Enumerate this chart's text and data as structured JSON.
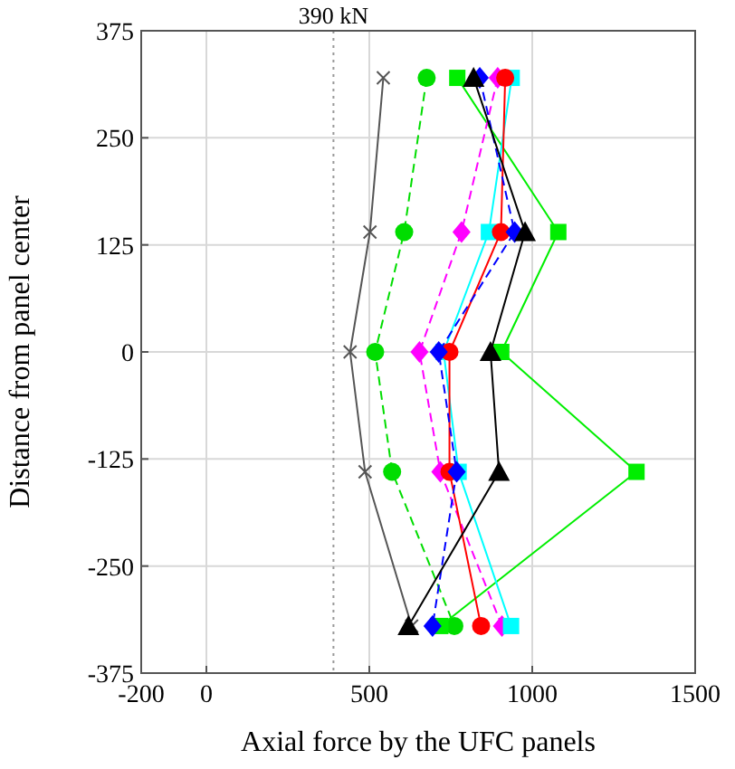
{
  "chart_data": {
    "type": "line",
    "xlabel": "Axial force by the UFC panels",
    "ylabel": "Distance from panel center",
    "xlim": [
      -200,
      1500
    ],
    "xticks": [
      -200,
      0,
      500,
      1000,
      1500
    ],
    "ylim": [
      -375,
      375
    ],
    "yticks": [
      -375,
      -250,
      -125,
      0,
      125,
      250,
      375
    ],
    "grid": true,
    "ref_lines": [
      {
        "axis": "x",
        "value": 390,
        "label": "390 kN",
        "line_style": "dotted",
        "color": "#999999"
      }
    ],
    "series": [
      {
        "color": "#555555",
        "marker": "cross",
        "line_style": "solid",
        "x": [
          543,
          502,
          441,
          487,
          630
        ],
        "values": [
          320,
          140,
          0,
          -140,
          -320
        ]
      },
      {
        "color": "#00dd00",
        "marker": "circle",
        "line_style": "dashed",
        "x": [
          676,
          607,
          518,
          570,
          761
        ],
        "values": [
          320,
          140,
          0,
          -140,
          -320
        ]
      },
      {
        "color": "#00ee00",
        "marker": "square",
        "line_style": "solid",
        "x": [
          770,
          1080,
          905,
          1320,
          718
        ],
        "values": [
          320,
          140,
          0,
          -140,
          -320
        ]
      },
      {
        "color": "#ff00ff",
        "marker": "diamond",
        "line_style": "dashed",
        "x": [
          894,
          783,
          654,
          718,
          907
        ],
        "values": [
          320,
          140,
          0,
          -140,
          -320
        ]
      },
      {
        "color": "#00ffff",
        "marker": "square",
        "line_style": "solid",
        "x": [
          937,
          867,
          728,
          774,
          935
        ],
        "values": [
          320,
          140,
          0,
          -140,
          -320
        ]
      },
      {
        "color": "#ff0000",
        "marker": "circle",
        "line_style": "solid",
        "x": [
          917,
          904,
          746,
          746,
          843
        ],
        "values": [
          320,
          140,
          0,
          -140,
          -320
        ]
      },
      {
        "color": "#0000ff",
        "marker": "diamond",
        "line_style": "dashed",
        "x": [
          839,
          946,
          713,
          768,
          694
        ],
        "values": [
          320,
          140,
          0,
          -140,
          -320
        ]
      },
      {
        "color": "#000000",
        "marker": "triangle",
        "line_style": "solid",
        "x": [
          820,
          978,
          872,
          898,
          620
        ],
        "values": [
          320,
          140,
          0,
          -140,
          -320
        ]
      }
    ]
  }
}
